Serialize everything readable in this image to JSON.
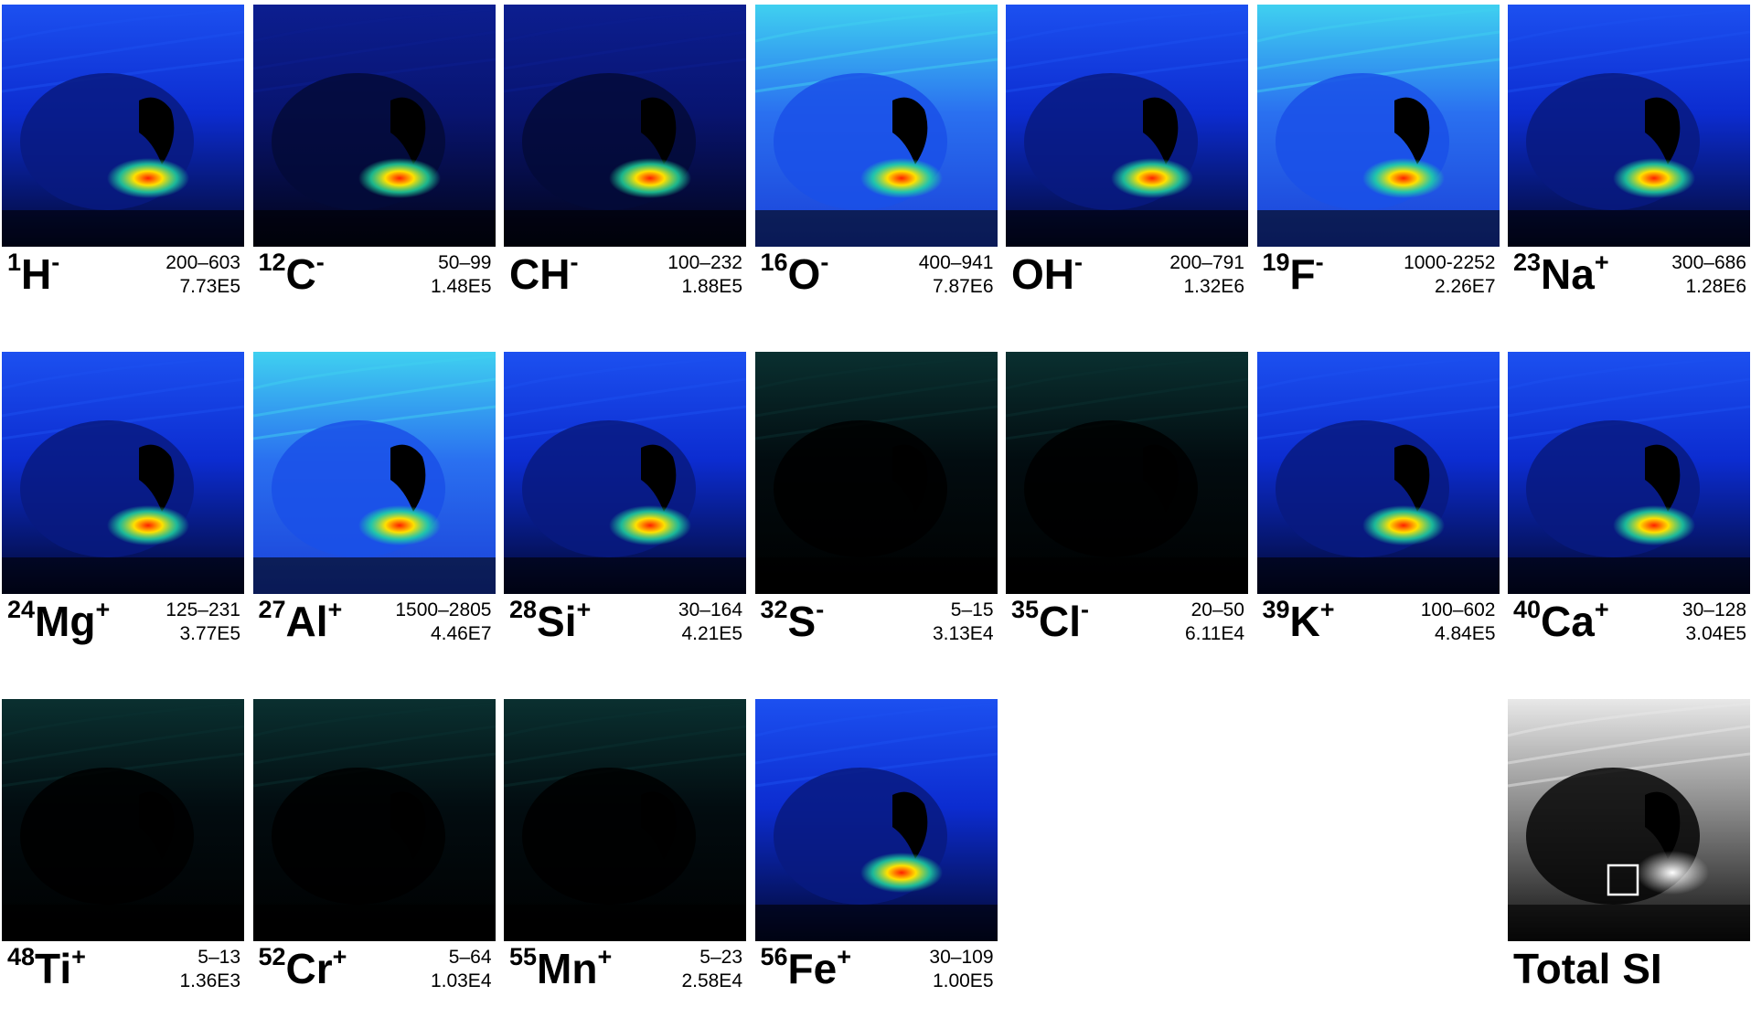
{
  "panels": [
    {
      "isotope": "1",
      "ion": "H",
      "charge": "-",
      "range": "200–603",
      "counts": "7.73E5"
    },
    {
      "isotope": "12",
      "ion": "C",
      "charge": "-",
      "range": "50–99",
      "counts": "1.48E5"
    },
    {
      "ion": "CH",
      "charge": "-",
      "range": "100–232",
      "counts": "1.88E5"
    },
    {
      "isotope": "16",
      "ion": "O",
      "charge": "-",
      "range": "400–941",
      "counts": "7.87E6"
    },
    {
      "ion": "OH",
      "charge": "-",
      "range": "200–791",
      "counts": "1.32E6"
    },
    {
      "isotope": "19",
      "ion": "F",
      "charge": "-",
      "range": "1000-2252",
      "counts": "2.26E7"
    },
    {
      "isotope": "23",
      "ion": "Na",
      "charge": "+",
      "range": "300–686",
      "counts": "1.28E6"
    },
    {
      "isotope": "24",
      "ion": "Mg",
      "charge": "+",
      "range": "125–231",
      "counts": "3.77E5"
    },
    {
      "isotope": "27",
      "ion": "Al",
      "charge": "+",
      "range": "1500–2805",
      "counts": "4.46E7"
    },
    {
      "isotope": "28",
      "ion": "Si",
      "charge": "+",
      "range": "30–164",
      "counts": "4.21E5"
    },
    {
      "isotope": "32",
      "ion": "S",
      "charge": "-",
      "range": "5–15",
      "counts": "3.13E4"
    },
    {
      "isotope": "35",
      "ion": "Cl",
      "charge": "-",
      "range": "20–50",
      "counts": "6.11E4"
    },
    {
      "isotope": "39",
      "ion": "K",
      "charge": "+",
      "range": "100–602",
      "counts": "4.84E5"
    },
    {
      "isotope": "40",
      "ion": "Ca",
      "charge": "+",
      "range": "30–128",
      "counts": "3.04E5"
    },
    {
      "isotope": "48",
      "ion": "Ti",
      "charge": "+",
      "range": "5–13",
      "counts": "1.36E3"
    },
    {
      "isotope": "52",
      "ion": "Cr",
      "charge": "+",
      "range": "5–64",
      "counts": "1.03E4"
    },
    {
      "isotope": "55",
      "ion": "Mn",
      "charge": "+",
      "range": "5–23",
      "counts": "2.58E4"
    },
    {
      "isotope": "56",
      "ion": "Fe",
      "charge": "+",
      "range": "30–109",
      "counts": "1.00E5"
    }
  ],
  "total": {
    "label": "Total SI"
  }
}
